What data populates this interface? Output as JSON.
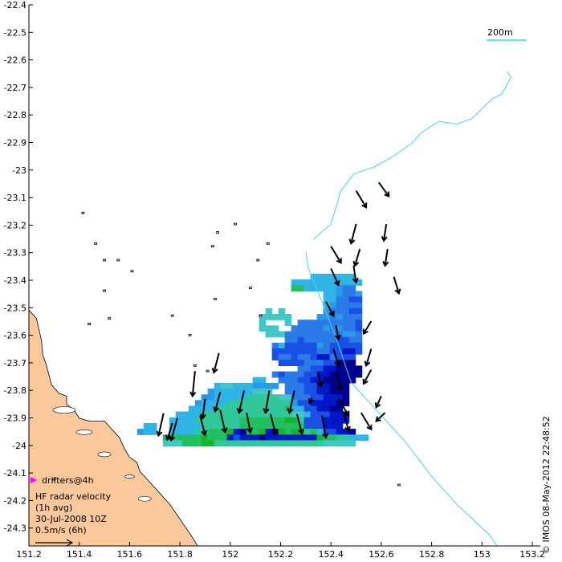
{
  "x_ticks": [
    "151.2",
    "151.4",
    "151.6",
    "151.8",
    "152",
    "152.2",
    "152.4",
    "152.6",
    "152.8",
    "153",
    "153.2"
  ],
  "y_ticks": [
    "-22.4",
    "-22.5",
    "-22.6",
    "-22.7",
    "-22.8",
    "-22.9",
    "-23",
    "-23.1",
    "-23.2",
    "-23.3",
    "-23.4",
    "-23.5",
    "-23.6",
    "-23.7",
    "-23.8",
    "-23.9",
    "-24",
    "-24.1",
    "-24.2",
    "-24.3"
  ],
  "scale_label": "200m",
  "legend": {
    "drifters": "drifters@4h",
    "line1": "HF radar velocity",
    "line2": "(1h avg)",
    "line3": "30-Jul-2008 10Z",
    "line4": "0.5m/s (6h)"
  },
  "credit": "© IMOS 08-May-2012 22:48:52",
  "colors": {
    "land": "#fac89b",
    "isobath": "#3fd6e6",
    "arrow": "#000000",
    "drifter_marker": "#ff00ff"
  },
  "map_data": {
    "lon_range": [
      151.2,
      153.2
    ],
    "lat_range": [
      -24.35,
      -22.4
    ],
    "grid_origin": [
      151.63,
      -23.99
    ],
    "grid_step": [
      0.0255,
      0.0207
    ],
    "speed_colors": {
      "0": "#00008c",
      "1": "#0018c8",
      "2": "#1a50e6",
      "3": "#2a7ae8",
      "4": "#2a9ae8",
      "5": "#30b4e6",
      "6": "#40c8c8",
      "7": "#30c89a",
      "8": "#20c060",
      "9": "#18b430",
      "10": "#c8f020",
      "11": "#f0f000",
      "12": "#f0a020"
    },
    "speed_cells": [
      "...........................5555555.",
      "........................55555555555",
      "........................8855555433.",
      ".............................554334",
      ".............................553322",
      ".............................543333",
      "....................6.6......433322",
      "...................66666....4434333",
      "...................6...6.3333333332",
      "...................666..33333434332",
      "....................666333333333443",
      ".......................332333332233",
      ".....................35222224322222",
      ".....................22222223322112",
      ".....................2332332113222.",
      "......................222233322000.",
      ".........................3322110000",
      ".....................32333221100000",
      "..................55..333221100000.",
      "............5665554444.3332211000.",
      "...........4555555666..3332211000.",
      "..........44555557777766333221110.",
      ".........455557777777777422111100.",
      "........555577777777777855221100.",
      "......555577777777777777665222111.",
      ".....5555777777788888889972221111.",
      ".55..555557777778888888888222111..",
      "455..55557788891098910989978522110",
      "....88888898881211101111111198877555",
      "....666888997777777777777777766666."
    ],
    "vectors": [
      [
        151.735,
        -23.872,
        -0.02,
        0.08
      ],
      [
        151.77,
        -23.907,
        -0.02,
        0.06
      ],
      [
        151.79,
        -23.889,
        -0.025,
        0.08
      ],
      [
        151.86,
        -23.72,
        -0.01,
        0.09
      ],
      [
        151.9,
        -23.82,
        -0.01,
        0.07
      ],
      [
        151.88,
        -23.88,
        0.02,
        0.07
      ],
      [
        151.955,
        -23.655,
        -0.02,
        0.07
      ],
      [
        151.96,
        -23.795,
        -0.02,
        0.07
      ],
      [
        151.96,
        -23.86,
        0.02,
        0.08
      ],
      [
        152.055,
        -23.79,
        -0.02,
        0.08
      ],
      [
        152.065,
        -23.87,
        0.015,
        0.07
      ],
      [
        152.155,
        -23.79,
        -0.015,
        0.08
      ],
      [
        152.16,
        -23.875,
        0.02,
        0.07
      ],
      [
        152.255,
        -23.79,
        -0.02,
        0.08
      ],
      [
        152.265,
        -23.875,
        0.02,
        0.07
      ],
      [
        152.325,
        -23.815,
        -0.01,
        0.02
      ],
      [
        152.35,
        -23.725,
        0.01,
        0.05
      ],
      [
        152.365,
        -23.88,
        0.015,
        0.08
      ],
      [
        152.45,
        -23.865,
        0.02,
        0.07
      ],
      [
        152.42,
        -23.555,
        0.01,
        0.05
      ],
      [
        152.41,
        -23.64,
        0.02,
        0.06
      ],
      [
        152.42,
        -23.725,
        0.02,
        0.06
      ],
      [
        152.43,
        -23.82,
        0.04,
        0.06
      ],
      [
        152.52,
        -23.87,
        0.04,
        0.06
      ],
      [
        152.56,
        -23.54,
        -0.03,
        0.045
      ],
      [
        152.56,
        -23.64,
        -0.02,
        0.06
      ],
      [
        152.56,
        -23.715,
        -0.03,
        0.05
      ],
      [
        152.6,
        -23.81,
        -0.02,
        0.04
      ],
      [
        152.615,
        -23.87,
        -0.035,
        0.03
      ],
      [
        152.4,
        -23.35,
        0.03,
        0.06
      ],
      [
        152.4,
        -23.27,
        0.04,
        0.06
      ],
      [
        152.38,
        -23.47,
        0.03,
        0.05
      ],
      [
        152.49,
        -23.34,
        0.01,
        0.06
      ],
      [
        152.5,
        -23.19,
        -0.02,
        0.07
      ],
      [
        152.515,
        -23.28,
        -0.02,
        0.06
      ],
      [
        152.62,
        -23.19,
        -0.01,
        0.06
      ],
      [
        152.625,
        -23.28,
        -0.01,
        0.06
      ],
      [
        152.65,
        -23.38,
        0.02,
        0.06
      ],
      [
        152.59,
        -23.04,
        0.04,
        0.05
      ],
      [
        152.5,
        -23.07,
        0.04,
        0.06
      ]
    ],
    "isobath_200m": [
      [
        152.33,
        -23.245
      ],
      [
        152.4,
        -23.19
      ],
      [
        152.44,
        -23.07
      ],
      [
        152.49,
        -23.01
      ],
      [
        152.57,
        -22.985
      ],
      [
        152.64,
        -22.95
      ],
      [
        152.72,
        -22.9
      ],
      [
        152.76,
        -22.86
      ],
      [
        152.83,
        -22.82
      ],
      [
        152.9,
        -22.83
      ],
      [
        152.96,
        -22.81
      ],
      [
        153.04,
        -22.74
      ],
      [
        153.08,
        -22.72
      ],
      [
        153.115,
        -22.66
      ],
      [
        153.1,
        -22.64
      ],
      null,
      [
        152.3,
        -23.29
      ],
      [
        152.31,
        -23.35
      ],
      [
        152.36,
        -23.46
      ],
      [
        152.42,
        -23.6
      ],
      [
        152.48,
        -23.76
      ],
      [
        152.58,
        -23.86
      ],
      [
        152.7,
        -23.98
      ],
      [
        152.8,
        -24.1
      ],
      [
        152.9,
        -24.2
      ],
      [
        153.03,
        -24.31
      ],
      [
        153.06,
        -24.35
      ]
    ],
    "coastline": [
      [
        151.2,
        -23.5
      ],
      [
        151.23,
        -23.53
      ],
      [
        151.25,
        -23.61
      ],
      [
        151.255,
        -23.66
      ],
      [
        151.27,
        -23.7
      ],
      [
        151.29,
        -23.77
      ],
      [
        151.32,
        -23.8
      ],
      [
        151.35,
        -23.81
      ],
      [
        151.35,
        -23.84
      ],
      [
        151.38,
        -23.86
      ],
      [
        151.4,
        -23.89
      ],
      [
        151.44,
        -23.9
      ],
      [
        151.5,
        -23.9
      ],
      [
        151.52,
        -23.92
      ],
      [
        151.56,
        -23.96
      ],
      [
        151.58,
        -24.0
      ],
      [
        151.6,
        -24.03
      ],
      [
        151.63,
        -24.05
      ],
      [
        151.64,
        -24.08
      ],
      [
        151.66,
        -24.1
      ],
      [
        151.69,
        -24.13
      ],
      [
        151.72,
        -24.16
      ],
      [
        151.76,
        -24.2
      ],
      [
        151.79,
        -24.24
      ],
      [
        151.82,
        -24.28
      ],
      [
        151.85,
        -24.32
      ],
      [
        151.87,
        -24.35
      ]
    ],
    "islands": [
      [
        151.415,
        -23.15
      ],
      [
        151.465,
        -23.26
      ],
      [
        151.5,
        -23.32
      ],
      [
        151.555,
        -23.32
      ],
      [
        151.61,
        -23.36
      ],
      [
        151.5,
        -23.43
      ],
      [
        151.52,
        -23.53
      ],
      [
        151.44,
        -23.55
      ],
      [
        151.77,
        -23.52
      ],
      [
        151.84,
        -23.59
      ],
      [
        151.94,
        -23.46
      ],
      [
        151.95,
        -23.22
      ],
      [
        151.93,
        -23.27
      ],
      [
        152.02,
        -23.19
      ],
      [
        152.11,
        -23.32
      ],
      [
        152.15,
        -23.26
      ],
      [
        152.08,
        -23.42
      ],
      [
        152.12,
        -23.52
      ],
      [
        152.67,
        -24.13
      ],
      [
        151.3,
        -24.11
      ],
      [
        151.86,
        -23.7
      ],
      [
        151.91,
        -23.72
      ]
    ],
    "drifter": [
      151.22,
      -24.123
    ]
  }
}
